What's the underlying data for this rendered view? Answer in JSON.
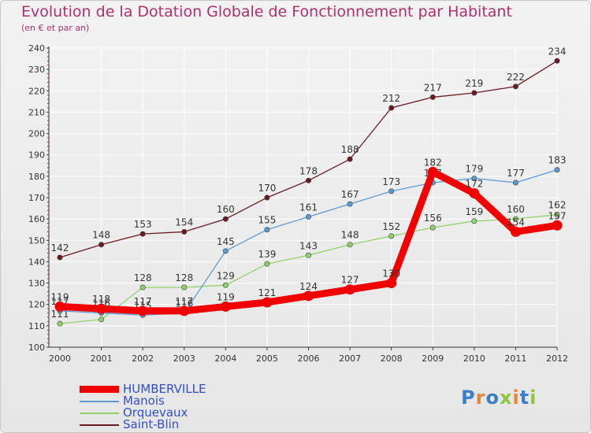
{
  "title": "Evolution de la Dotation Globale de Fonctionnement par Habitant",
  "subtitle": "(en € et par an)",
  "logo": {
    "letters": [
      {
        "char": "P",
        "color": "#3a7dc9"
      },
      {
        "char": "r",
        "color": "#e8833a"
      },
      {
        "char": "o",
        "color": "#3a7dc9"
      },
      {
        "char": "x",
        "color": "#8cc63e"
      },
      {
        "char": "i",
        "color": "#e8833a"
      },
      {
        "char": "t",
        "color": "#3a7dc9"
      },
      {
        "char": "i",
        "color": "#8cc63e"
      }
    ]
  },
  "colors": {
    "axis": "#333333",
    "tick_label": "#333333",
    "value_label": "#333333",
    "gridline": "#ffffff",
    "title": "#b0306a"
  },
  "chart_data": {
    "type": "line",
    "x": [
      "2000",
      "2001",
      "2002",
      "2003",
      "2004",
      "2005",
      "2006",
      "2007",
      "2008",
      "2009",
      "2010",
      "2011",
      "2012"
    ],
    "ylim": [
      100,
      240
    ],
    "yticks": [
      100,
      110,
      120,
      130,
      140,
      150,
      160,
      170,
      180,
      190,
      200,
      210,
      220,
      230,
      240
    ],
    "grid": true,
    "legend_position": "bottom-left",
    "series": [
      {
        "name": "Saint-Blin",
        "color": "#6b1a24",
        "values": [
          142,
          148,
          153,
          154,
          160,
          170,
          178,
          188,
          212,
          217,
          219,
          222,
          234
        ]
      },
      {
        "name": "Orquevaux",
        "color": "#8fd16a",
        "values": [
          111,
          113,
          128,
          128,
          129,
          139,
          143,
          148,
          152,
          156,
          159,
          160,
          162
        ]
      },
      {
        "name": "Manois",
        "color": "#5b9bd5",
        "values": [
          117,
          116,
          115,
          116,
          145,
          155,
          161,
          167,
          173,
          177,
          179,
          177,
          183
        ]
      },
      {
        "name": "HUMBERVILLE",
        "color": "#f20000",
        "values": [
          119,
          118,
          117,
          117,
          119,
          121,
          124,
          127,
          130,
          182,
          172,
          154,
          157
        ]
      }
    ],
    "legend_order": [
      "HUMBERVILLE",
      "Manois",
      "Orquevaux",
      "Saint-Blin"
    ]
  }
}
